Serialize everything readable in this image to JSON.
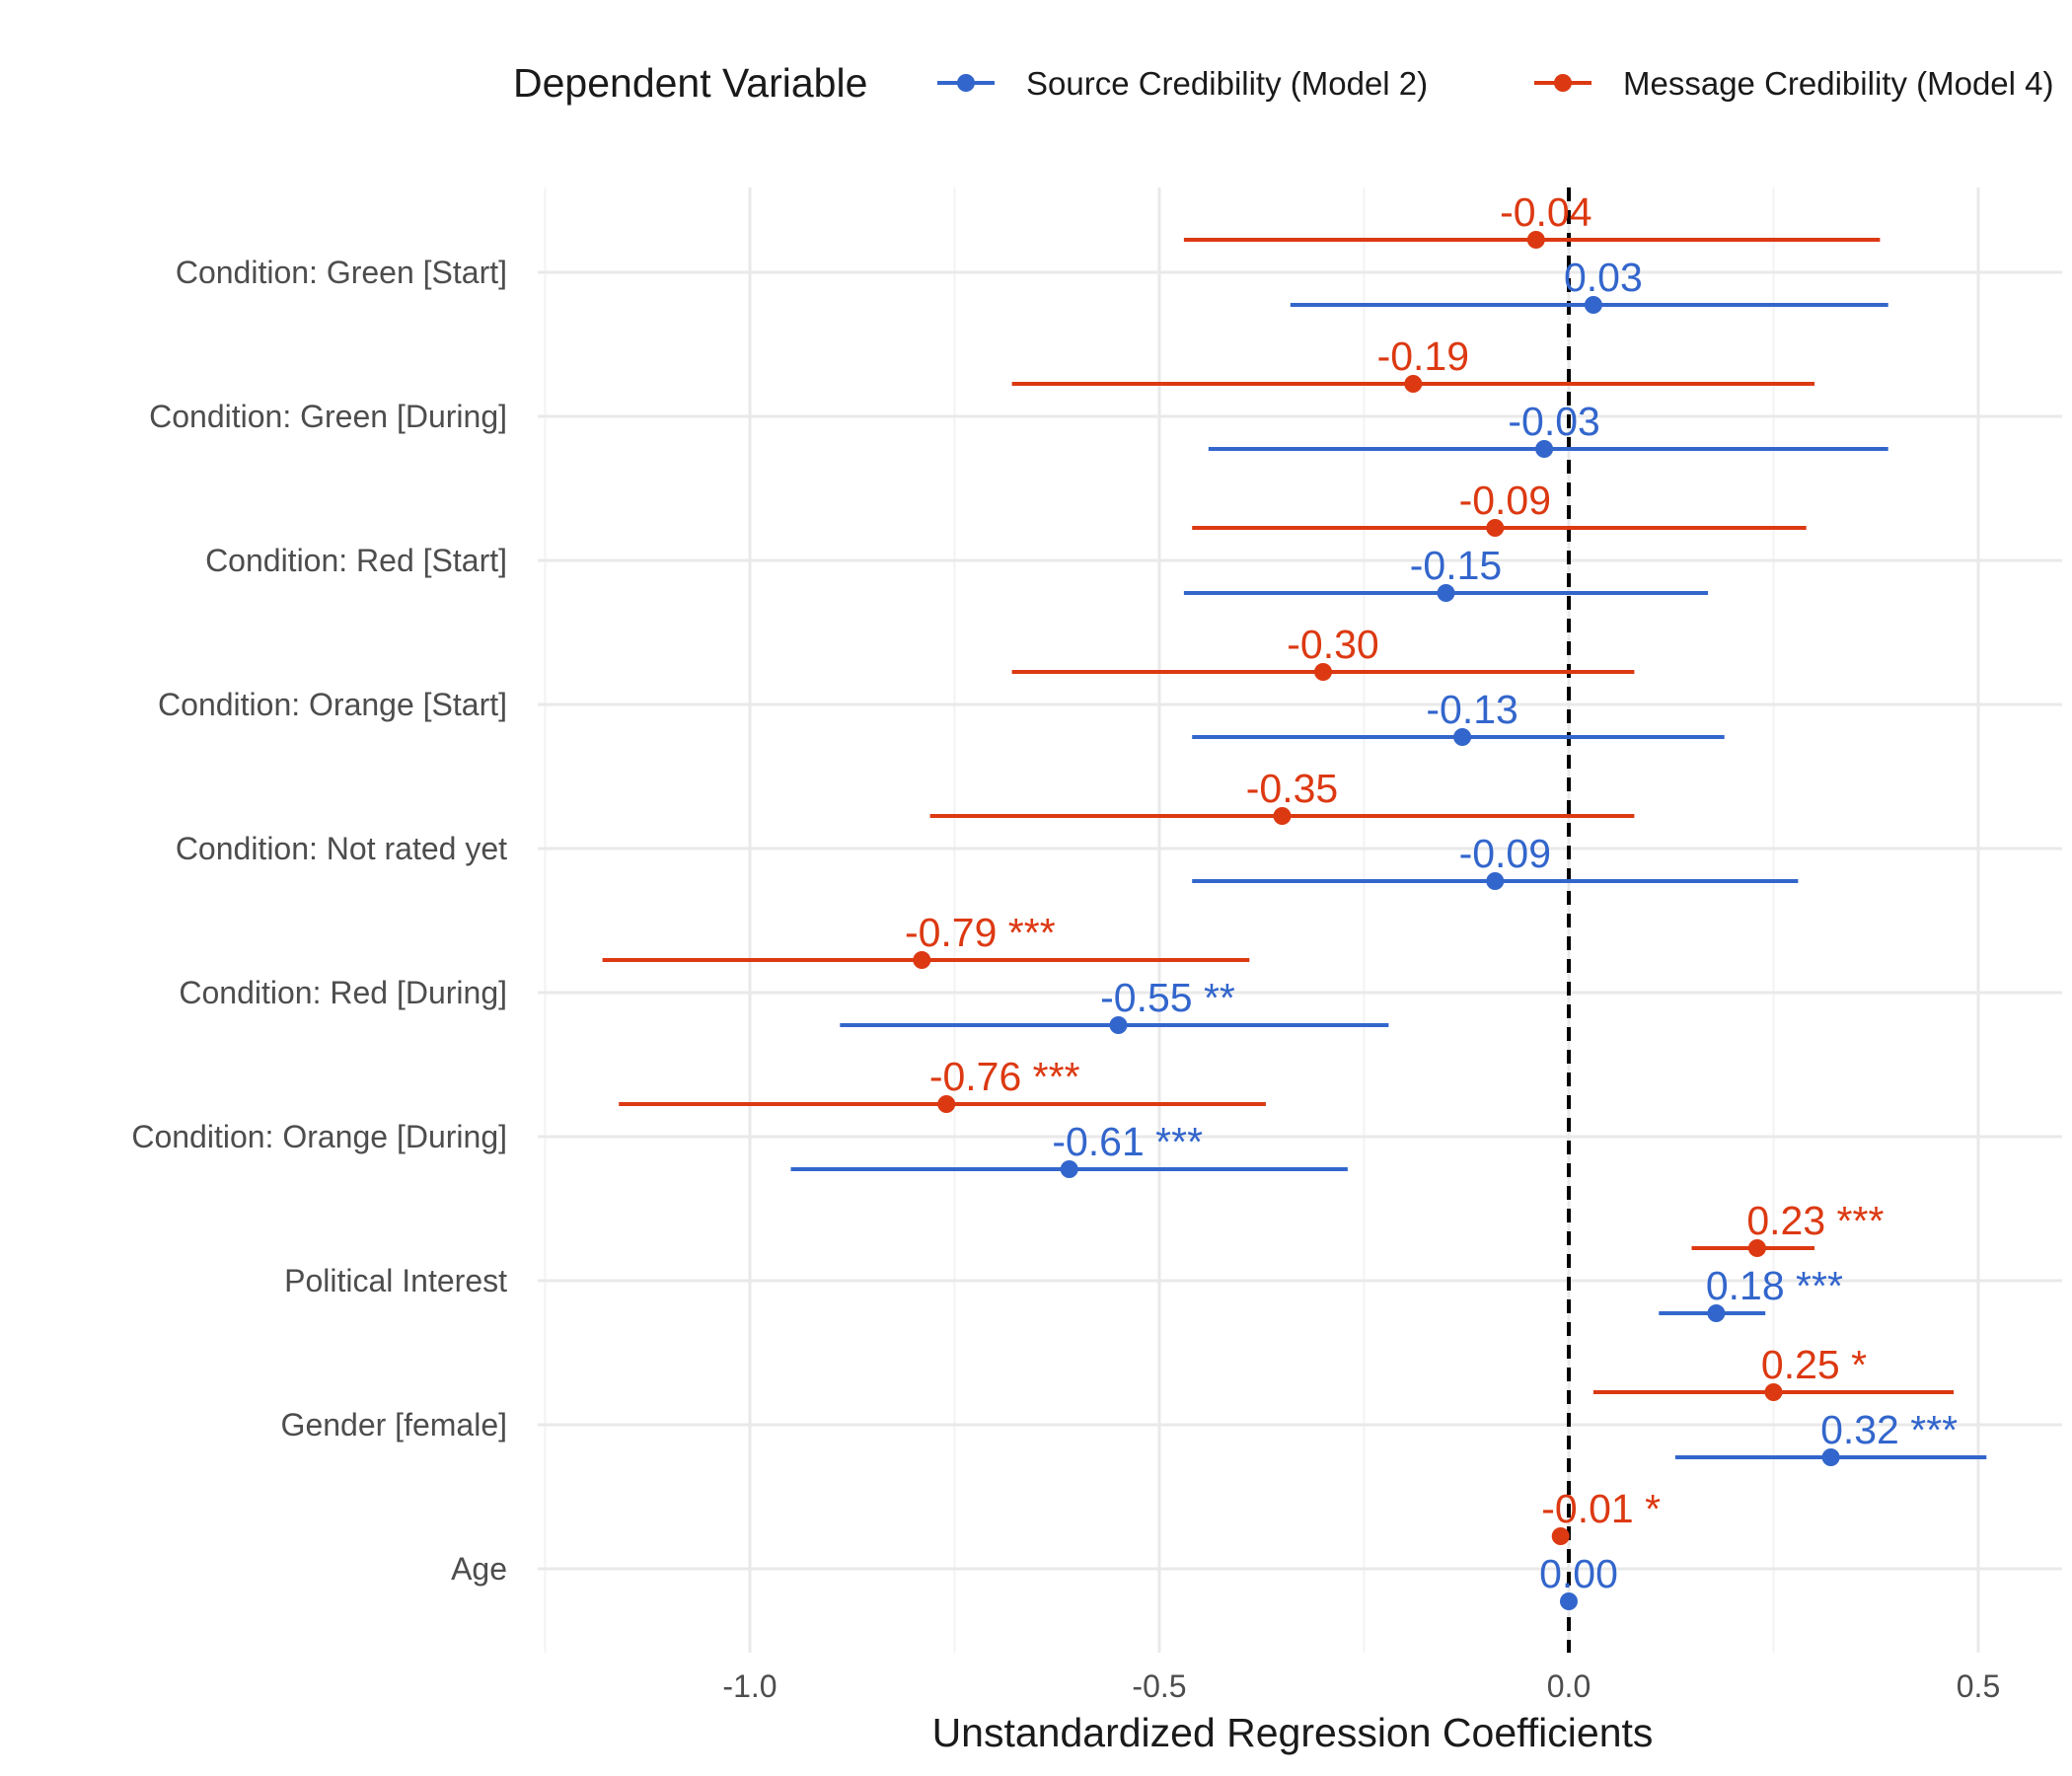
{
  "chart_data": {
    "type": "coefficient-plot",
    "xlabel": "Unstandardized Regression Coefficients",
    "xlim": [
      -1.25,
      0.57
    ],
    "xticks": [
      "-1.0",
      "-0.5",
      "0.0",
      "0.5"
    ],
    "xtick_values": [
      -1.0,
      -0.5,
      0.0,
      0.5
    ],
    "reference_line": 0,
    "legend": {
      "title": "Dependent Variable",
      "position": "top"
    },
    "grid": true,
    "categories": [
      "Condition: Green [Start]",
      "Condition: Green [During]",
      "Condition: Red [Start]",
      "Condition: Orange [Start]",
      "Condition: Not rated yet",
      "Condition: Red [During]",
      "Condition: Orange [During]",
      "Political Interest",
      "Gender [female]",
      "Age"
    ],
    "series": [
      {
        "name": "Source Credibility (Model 2)",
        "color": "#3366cc",
        "estimates": [
          0.03,
          -0.03,
          -0.15,
          -0.13,
          -0.09,
          -0.55,
          -0.61,
          0.18,
          0.32,
          0.0
        ],
        "ci_low": [
          -0.34,
          -0.44,
          -0.47,
          -0.46,
          -0.46,
          -0.89,
          -0.95,
          0.11,
          0.13,
          0.0
        ],
        "ci_high": [
          0.39,
          0.39,
          0.17,
          0.19,
          0.28,
          -0.22,
          -0.27,
          0.24,
          0.51,
          0.0
        ],
        "labels": [
          "0.03",
          "-0.03",
          "-0.15",
          "-0.13",
          "-0.09",
          "-0.55 **",
          "-0.61 ***",
          "0.18 ***",
          "0.32 ***",
          "0.00"
        ]
      },
      {
        "name": "Message Credibility (Model 4)",
        "color": "#dc3912",
        "estimates": [
          -0.04,
          -0.19,
          -0.09,
          -0.3,
          -0.35,
          -0.79,
          -0.76,
          0.23,
          0.25,
          -0.01
        ],
        "ci_low": [
          -0.47,
          -0.68,
          -0.46,
          -0.68,
          -0.78,
          -1.18,
          -1.16,
          0.15,
          0.03,
          -0.01
        ],
        "ci_high": [
          0.38,
          0.3,
          0.29,
          0.08,
          0.08,
          -0.39,
          -0.37,
          0.3,
          0.47,
          -0.01
        ],
        "labels": [
          "-0.04",
          "-0.19",
          "-0.09",
          "-0.30",
          "-0.35",
          "-0.79 ***",
          "-0.76 ***",
          "0.23 ***",
          "0.25 *",
          "-0.01 *"
        ]
      }
    ]
  }
}
